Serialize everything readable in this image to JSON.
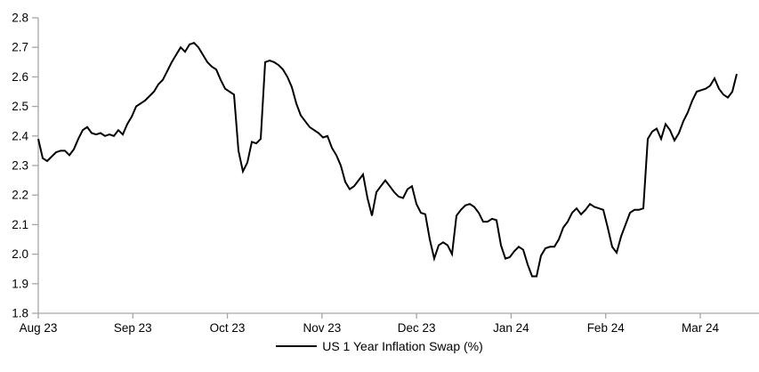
{
  "chart_data": {
    "type": "line",
    "title": "",
    "xlabel": "",
    "ylabel": "",
    "ylim": [
      1.8,
      2.8
    ],
    "grid": false,
    "legend_position": "bottom-center",
    "x_tick_labels": [
      "Aug 23",
      "Sep 23",
      "Oct 23",
      "Nov 23",
      "Dec 23",
      "Jan 24",
      "Feb 24",
      "Mar 24"
    ],
    "y_tick_labels": [
      "2.8",
      "2.7",
      "2.6",
      "2.5",
      "2.4",
      "2.3",
      "2.2",
      "2.1",
      "2.0",
      "1.9",
      "1.8"
    ],
    "colors": {
      "axis": "#a6a6a6",
      "text": "#000000",
      "background": "#ffffff",
      "series": "#000000"
    },
    "series": [
      {
        "name": "US 1 Year Inflation Swap (%)",
        "color": "#000000",
        "values": [
          2.39,
          2.325,
          2.315,
          2.33,
          2.345,
          2.35,
          2.35,
          2.335,
          2.355,
          2.39,
          2.42,
          2.43,
          2.41,
          2.405,
          2.41,
          2.4,
          2.405,
          2.4,
          2.42,
          2.405,
          2.44,
          2.465,
          2.5,
          2.51,
          2.52,
          2.535,
          2.55,
          2.575,
          2.59,
          2.62,
          2.65,
          2.675,
          2.7,
          2.685,
          2.71,
          2.715,
          2.7,
          2.675,
          2.65,
          2.635,
          2.625,
          2.59,
          2.56,
          2.55,
          2.54,
          2.35,
          2.28,
          2.31,
          2.38,
          2.375,
          2.39,
          2.65,
          2.655,
          2.65,
          2.64,
          2.625,
          2.6,
          2.565,
          2.51,
          2.47,
          2.45,
          2.43,
          2.42,
          2.41,
          2.395,
          2.4,
          2.36,
          2.335,
          2.3,
          2.245,
          2.22,
          2.23,
          2.25,
          2.27,
          2.19,
          2.13,
          2.21,
          2.23,
          2.25,
          2.23,
          2.21,
          2.195,
          2.19,
          2.22,
          2.23,
          2.17,
          2.14,
          2.135,
          2.05,
          1.985,
          2.03,
          2.04,
          2.03,
          2.0,
          2.13,
          2.15,
          2.165,
          2.17,
          2.16,
          2.14,
          2.11,
          2.11,
          2.12,
          2.115,
          2.03,
          1.985,
          1.99,
          2.01,
          2.025,
          2.015,
          1.965,
          1.925,
          1.925,
          1.995,
          2.02,
          2.025,
          2.025,
          2.05,
          2.09,
          2.11,
          2.14,
          2.155,
          2.135,
          2.15,
          2.17,
          2.16,
          2.155,
          2.15,
          2.09,
          2.025,
          2.005,
          2.06,
          2.1,
          2.14,
          2.15,
          2.15,
          2.155,
          2.39,
          2.415,
          2.425,
          2.39,
          2.44,
          2.42,
          2.385,
          2.41,
          2.45,
          2.48,
          2.52,
          2.55,
          2.555,
          2.56,
          2.57,
          2.595,
          2.56,
          2.54,
          2.53,
          2.55,
          2.61
        ]
      }
    ]
  },
  "legend": {
    "label": "US 1 Year Inflation Swap (%)"
  }
}
